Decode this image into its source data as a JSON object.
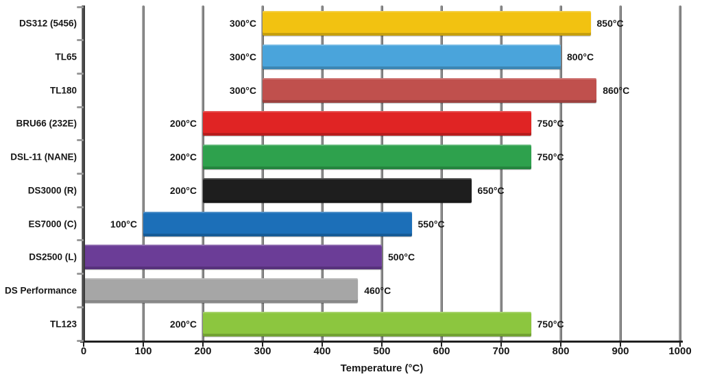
{
  "chart_data": {
    "type": "bar",
    "subtype": "horizontal-range",
    "xlabel": "Temperature (°C)",
    "xlim": [
      0,
      1000
    ],
    "xticks": [
      0,
      100,
      200,
      300,
      400,
      500,
      600,
      700,
      800,
      900,
      1000
    ],
    "grid": true,
    "legend": false,
    "unit": "°C",
    "bars": [
      {
        "label": "DS312 (5456)",
        "start": 300,
        "end": 850,
        "start_label": "300°C",
        "end_label": "850°C",
        "color": "#f2c211"
      },
      {
        "label": "TL65",
        "start": 300,
        "end": 800,
        "start_label": "300°C",
        "end_label": "800°C",
        "color": "#4aa4db"
      },
      {
        "label": "TL180",
        "start": 300,
        "end": 860,
        "start_label": "300°C",
        "end_label": "860°C",
        "color": "#c0504d"
      },
      {
        "label": "BRU66 (232E)",
        "start": 200,
        "end": 750,
        "start_label": "200°C",
        "end_label": "750°C",
        "color": "#e02424"
      },
      {
        "label": "DSL-11 (NANE)",
        "start": 200,
        "end": 750,
        "start_label": "200°C",
        "end_label": "750°C",
        "color": "#2ea14d"
      },
      {
        "label": "DS3000 (R)",
        "start": 200,
        "end": 650,
        "start_label": "200°C",
        "end_label": "650°C",
        "color": "#1e1e1e"
      },
      {
        "label": "ES7000 (C)",
        "start": 100,
        "end": 550,
        "start_label": "100°C",
        "end_label": "550°C",
        "color": "#1c6fb8"
      },
      {
        "label": "DS2500 (L)",
        "start": 0,
        "end": 500,
        "start_label": "",
        "end_label": "500°C",
        "color": "#6b3d97"
      },
      {
        "label": "DS Performance",
        "start": 0,
        "end": 460,
        "start_label": "",
        "end_label": "460°C",
        "color": "#a6a6a6"
      },
      {
        "label": "TL123",
        "start": 200,
        "end": 750,
        "start_label": "200°C",
        "end_label": "750°C",
        "color": "#8cc63f"
      }
    ],
    "colors": {
      "gridline": "#8c8c8c",
      "axis": "#1f1f1f",
      "text": "#161616"
    }
  }
}
